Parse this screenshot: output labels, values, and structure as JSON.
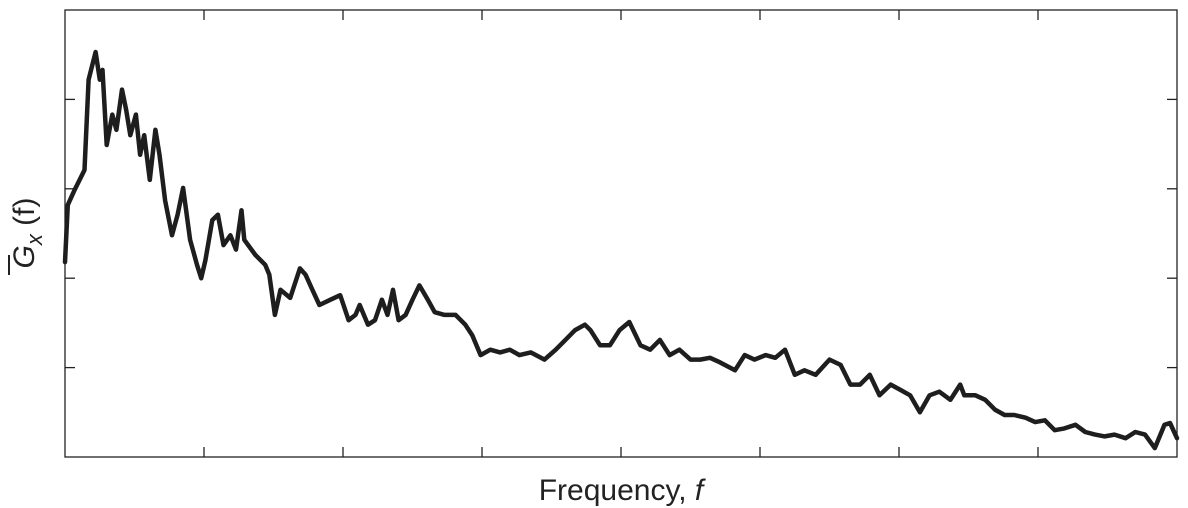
{
  "chart_data": {
    "type": "line",
    "title": "",
    "xlabel": {
      "text": "Frequency, ",
      "var": "f"
    },
    "ylabel": {
      "symbol": "G",
      "subscript": "x",
      "arg": " (f)"
    },
    "xlim": [
      0,
      8
    ],
    "ylim": [
      0,
      5
    ],
    "xticks": [
      1,
      2,
      3,
      4,
      5,
      6,
      7
    ],
    "yticks": [
      1,
      2,
      3,
      4
    ],
    "tick_labels_shown": false,
    "grid": false,
    "line_color": "#1e1e1e",
    "series": [
      {
        "x": [
          0.0,
          0.02,
          0.07,
          0.14,
          0.17,
          0.22,
          0.25,
          0.27,
          0.3,
          0.34,
          0.37,
          0.41,
          0.44,
          0.47,
          0.51,
          0.54,
          0.57,
          0.61,
          0.65,
          0.68,
          0.72,
          0.77,
          0.81,
          0.85,
          0.9,
          0.95,
          0.98,
          1.01,
          1.06,
          1.1,
          1.14,
          1.19,
          1.23,
          1.27,
          1.29,
          1.37,
          1.44,
          1.47,
          1.51,
          1.55,
          1.62,
          1.69,
          1.73,
          1.78,
          1.83,
          1.91,
          1.98,
          2.04,
          2.09,
          2.12,
          2.18,
          2.23,
          2.28,
          2.32,
          2.36,
          2.4,
          2.45,
          2.5,
          2.55,
          2.61,
          2.66,
          2.73,
          2.81,
          2.88,
          2.93,
          2.99,
          3.06,
          3.13,
          3.2,
          3.27,
          3.35,
          3.45,
          3.53,
          3.6,
          3.67,
          3.74,
          3.78,
          3.85,
          3.92,
          3.99,
          4.06,
          4.14,
          4.21,
          4.28,
          4.35,
          4.42,
          4.5,
          4.57,
          4.64,
          4.71,
          4.82,
          4.89,
          4.96,
          5.04,
          5.11,
          5.18,
          5.25,
          5.32,
          5.4,
          5.5,
          5.58,
          5.65,
          5.72,
          5.79,
          5.86,
          5.94,
          6.01,
          6.08,
          6.15,
          6.22,
          6.29,
          6.37,
          6.44,
          6.47,
          6.55,
          6.62,
          6.69,
          6.76,
          6.83,
          6.91,
          6.98,
          7.05,
          7.12,
          7.19,
          7.27,
          7.34,
          7.41,
          7.48,
          7.55,
          7.63,
          7.7,
          7.77,
          7.84,
          7.91,
          7.95,
          8.0
        ],
        "y": [
          2.18,
          2.82,
          2.99,
          3.21,
          4.22,
          4.53,
          4.22,
          4.33,
          3.49,
          3.83,
          3.66,
          4.11,
          3.88,
          3.6,
          3.83,
          3.38,
          3.6,
          3.1,
          3.66,
          3.38,
          2.87,
          2.48,
          2.71,
          3.01,
          2.43,
          2.15,
          2.0,
          2.2,
          2.65,
          2.71,
          2.37,
          2.48,
          2.32,
          2.76,
          2.43,
          2.26,
          2.15,
          2.04,
          1.59,
          1.87,
          1.78,
          2.11,
          2.04,
          1.87,
          1.7,
          1.76,
          1.81,
          1.53,
          1.59,
          1.7,
          1.48,
          1.53,
          1.76,
          1.59,
          1.87,
          1.53,
          1.59,
          1.76,
          1.92,
          1.76,
          1.62,
          1.59,
          1.59,
          1.48,
          1.36,
          1.14,
          1.2,
          1.17,
          1.2,
          1.14,
          1.17,
          1.09,
          1.2,
          1.31,
          1.42,
          1.48,
          1.42,
          1.25,
          1.25,
          1.42,
          1.51,
          1.25,
          1.2,
          1.31,
          1.14,
          1.2,
          1.09,
          1.09,
          1.11,
          1.06,
          0.97,
          1.14,
          1.09,
          1.14,
          1.11,
          1.2,
          0.92,
          0.97,
          0.92,
          1.09,
          1.03,
          0.81,
          0.81,
          0.92,
          0.69,
          0.81,
          0.75,
          0.69,
          0.5,
          0.69,
          0.73,
          0.64,
          0.81,
          0.69,
          0.69,
          0.64,
          0.53,
          0.47,
          0.47,
          0.44,
          0.39,
          0.41,
          0.3,
          0.32,
          0.36,
          0.28,
          0.25,
          0.23,
          0.25,
          0.21,
          0.28,
          0.25,
          0.1,
          0.36,
          0.38,
          0.21
        ]
      }
    ]
  }
}
